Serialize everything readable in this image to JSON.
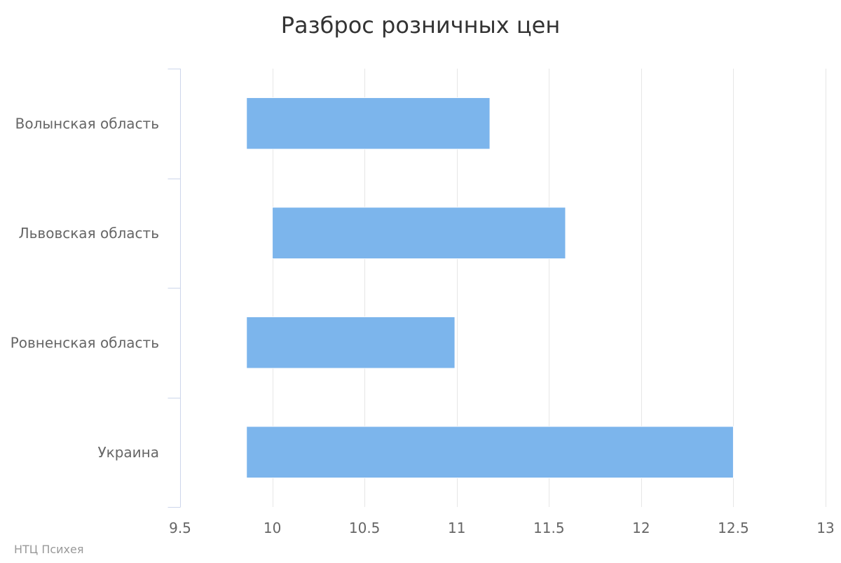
{
  "chart_data": {
    "type": "bar",
    "orientation": "horizontal",
    "subtype": "floating-range",
    "title": "Разброс розничных цен",
    "categories": [
      "Волынская область",
      "Львовская область",
      "Ровненская область",
      "Украина"
    ],
    "series": [
      {
        "ranges": [
          [
            9.86,
            11.18
          ],
          [
            10.0,
            11.59
          ],
          [
            9.86,
            10.99
          ],
          [
            9.86,
            12.5
          ]
        ],
        "color": "#7cb5ec"
      }
    ],
    "xlim": [
      9.5,
      13
    ],
    "x_ticks": [
      9.5,
      10,
      10.5,
      11,
      11.5,
      12,
      12.5,
      13
    ],
    "x_tick_labels": [
      "9.5",
      "10",
      "10.5",
      "11",
      "11.5",
      "12",
      "12.5",
      "13"
    ],
    "xlabel": "",
    "ylabel": "",
    "grid": true,
    "legend": "none"
  },
  "credits": "НТЦ Психея",
  "colors": {
    "bar": "#7cb5ec",
    "grid": "#e6e6e6",
    "axis": "#ccd6eb",
    "text": "#666666",
    "title": "#333333",
    "credit": "#999999"
  }
}
